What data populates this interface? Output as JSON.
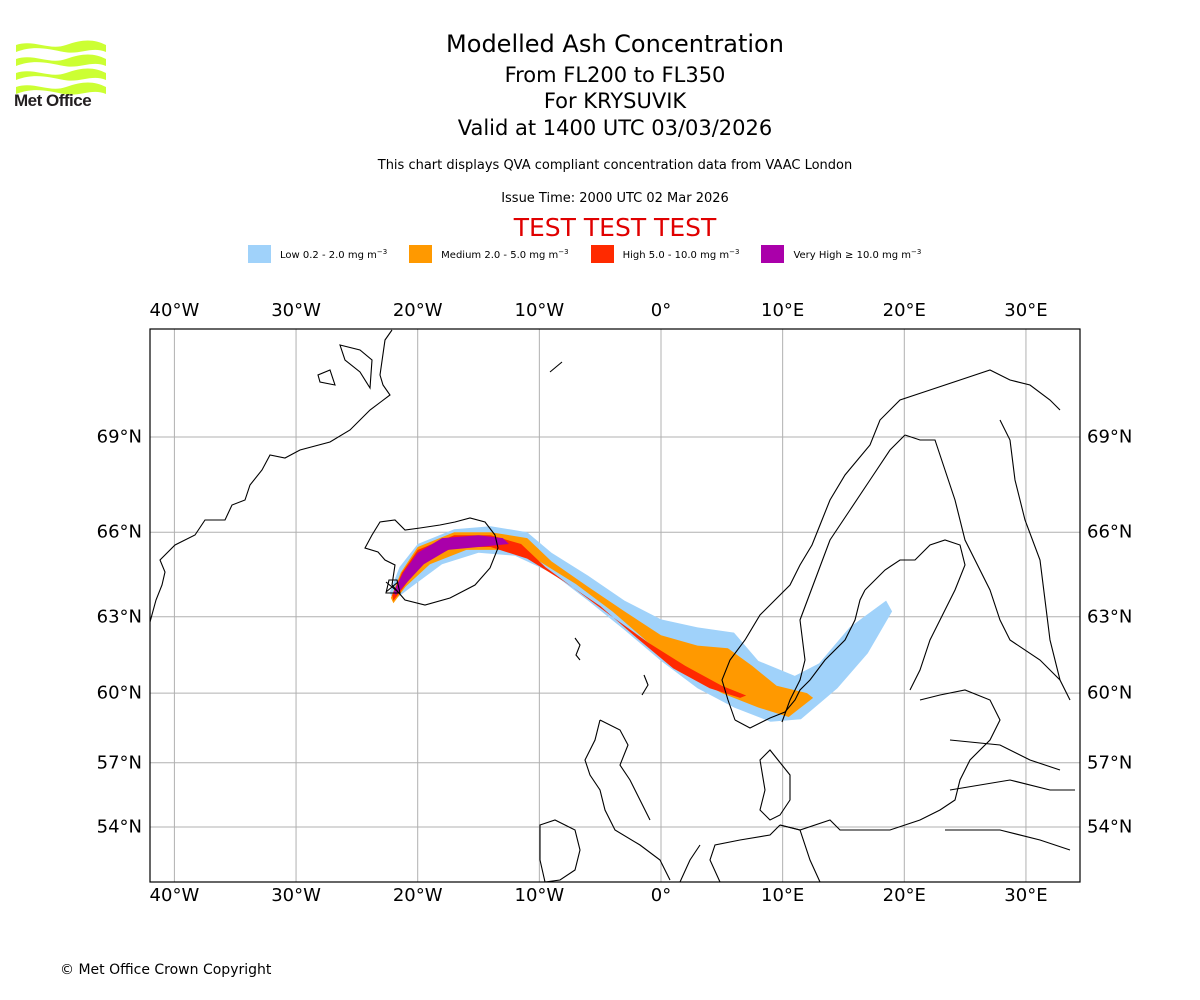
{
  "logo": {
    "name": "Met Office",
    "color": "#ccff33"
  },
  "header": {
    "title": "Modelled Ash Concentration",
    "level_range": "From FL200 to FL350",
    "volcano": "For KRYSUVIK",
    "valid": "Valid at 1400 UTC 03/03/2026",
    "description": "This chart displays QVA compliant concentration data from VAAC London",
    "issue_time": "Issue Time: 2000 UTC 02 Mar 2026",
    "test_banner": "TEST TEST TEST",
    "test_banner_color": "#e00000"
  },
  "legend": [
    {
      "label": "Low 0.2 - 2.0 mg m",
      "unit_exp": "−3",
      "color": "#a0d2fa"
    },
    {
      "label": "Medium 2.0 - 5.0 mg m",
      "unit_exp": "−3",
      "color": "#ff9900"
    },
    {
      "label": "High 5.0 - 10.0 mg m",
      "unit_exp": "−3",
      "color": "#ff2a00"
    },
    {
      "label": "Very High  ≥  10.0 mg m",
      "unit_exp": "−3",
      "color": "#aa00aa"
    }
  ],
  "chart_data": {
    "type": "heatmap",
    "title": "Modelled Ash Concentration",
    "projection": "mercator",
    "lon_range": [
      -42,
      34.5
    ],
    "lat_range": [
      52.2,
      72.5
    ],
    "grid": true,
    "x_ticks": [
      "40°W",
      "30°W",
      "20°W",
      "10°W",
      "0°",
      "10°E",
      "20°E",
      "30°E"
    ],
    "x_tick_values": [
      -40,
      -30,
      -20,
      -10,
      0,
      10,
      20,
      30
    ],
    "y_ticks": [
      "69°N",
      "66°N",
      "63°N",
      "60°N",
      "57°N",
      "54°N"
    ],
    "y_tick_values": [
      69,
      66,
      63,
      60,
      57,
      54
    ],
    "source_volcano": {
      "name": "KRYSUVIK",
      "lon": -22.1,
      "lat": 63.9
    },
    "plume_bands": [
      {
        "level": "Low",
        "min": 0.2,
        "max": 2.0,
        "color": "#a0d2fa",
        "outline": [
          [
            -22.3,
            63.9
          ],
          [
            -21.5,
            64.8
          ],
          [
            -20,
            65.6
          ],
          [
            -17,
            66.1
          ],
          [
            -14,
            66.2
          ],
          [
            -11,
            66.0
          ],
          [
            -9,
            65.3
          ],
          [
            -6,
            64.5
          ],
          [
            -3,
            63.6
          ],
          [
            0,
            62.9
          ],
          [
            3,
            62.6
          ],
          [
            6,
            62.4
          ],
          [
            8,
            61.3
          ],
          [
            11,
            60.7
          ],
          [
            13,
            61.2
          ],
          [
            15.5,
            62.6
          ],
          [
            18.5,
            63.6
          ],
          [
            19,
            63.2
          ],
          [
            17,
            61.6
          ],
          [
            14.5,
            60.2
          ],
          [
            11.5,
            58.9
          ],
          [
            9,
            58.8
          ],
          [
            6,
            59.4
          ],
          [
            3,
            60.2
          ],
          [
            0,
            61.3
          ],
          [
            -3,
            62.5
          ],
          [
            -6,
            63.6
          ],
          [
            -9,
            64.6
          ],
          [
            -12,
            65.2
          ],
          [
            -15,
            65.3
          ],
          [
            -18,
            64.9
          ],
          [
            -20.5,
            64.1
          ],
          [
            -22,
            63.6
          ]
        ]
      },
      {
        "level": "Medium",
        "min": 2.0,
        "max": 5.0,
        "color": "#ff9900",
        "outline": [
          [
            -22.2,
            63.7
          ],
          [
            -21.4,
            64.6
          ],
          [
            -20,
            65.5
          ],
          [
            -17,
            66.0
          ],
          [
            -14,
            66.0
          ],
          [
            -11,
            65.8
          ],
          [
            -9,
            65.0
          ],
          [
            -6,
            64.1
          ],
          [
            -3,
            63.2
          ],
          [
            0,
            62.3
          ],
          [
            3,
            61.9
          ],
          [
            5.5,
            61.8
          ],
          [
            7.5,
            61.1
          ],
          [
            9.5,
            60.3
          ],
          [
            12,
            60.0
          ],
          [
            12.5,
            59.8
          ],
          [
            10.5,
            59.0
          ],
          [
            8,
            59.4
          ],
          [
            5,
            60.0
          ],
          [
            2,
            60.8
          ],
          [
            -1,
            62.0
          ],
          [
            -4,
            63.2
          ],
          [
            -7,
            64.2
          ],
          [
            -10,
            65.0
          ],
          [
            -13,
            65.4
          ],
          [
            -16,
            65.4
          ],
          [
            -19,
            64.9
          ],
          [
            -21,
            64.1
          ],
          [
            -22,
            63.5
          ]
        ]
      },
      {
        "level": "High",
        "min": 5.0,
        "max": 10.0,
        "color": "#ff2a00",
        "outline": [
          [
            -22.1,
            63.8
          ],
          [
            -21.3,
            64.6
          ],
          [
            -20,
            65.4
          ],
          [
            -17,
            65.9
          ],
          [
            -14,
            65.9
          ],
          [
            -11.5,
            65.6
          ],
          [
            -9.5,
            64.8
          ],
          [
            -7,
            64.0
          ],
          [
            -4,
            63.0
          ],
          [
            -1,
            62.0
          ],
          [
            2,
            61.1
          ],
          [
            5,
            60.3
          ],
          [
            7,
            59.9
          ],
          [
            6.5,
            59.8
          ],
          [
            4,
            60.2
          ],
          [
            1,
            61.0
          ],
          [
            -2,
            62.2
          ],
          [
            -5,
            63.4
          ],
          [
            -8,
            64.3
          ],
          [
            -11,
            65.1
          ],
          [
            -14,
            65.5
          ],
          [
            -17,
            65.5
          ],
          [
            -19.8,
            64.9
          ],
          [
            -21.3,
            64.0
          ],
          [
            -22,
            63.6
          ]
        ]
      },
      {
        "level": "Very High",
        "min": 10.0,
        "max": null,
        "color": "#aa00aa",
        "outline": [
          [
            -22.0,
            63.9
          ],
          [
            -21.2,
            64.6
          ],
          [
            -20,
            65.3
          ],
          [
            -18,
            65.8
          ],
          [
            -15,
            65.9
          ],
          [
            -13,
            65.8
          ],
          [
            -12.5,
            65.6
          ],
          [
            -15,
            65.5
          ],
          [
            -17.5,
            65.4
          ],
          [
            -19.5,
            64.9
          ],
          [
            -21,
            64.2
          ],
          [
            -21.8,
            63.8
          ]
        ]
      }
    ]
  },
  "footer": {
    "copyright": "© Met Office Crown Copyright"
  }
}
